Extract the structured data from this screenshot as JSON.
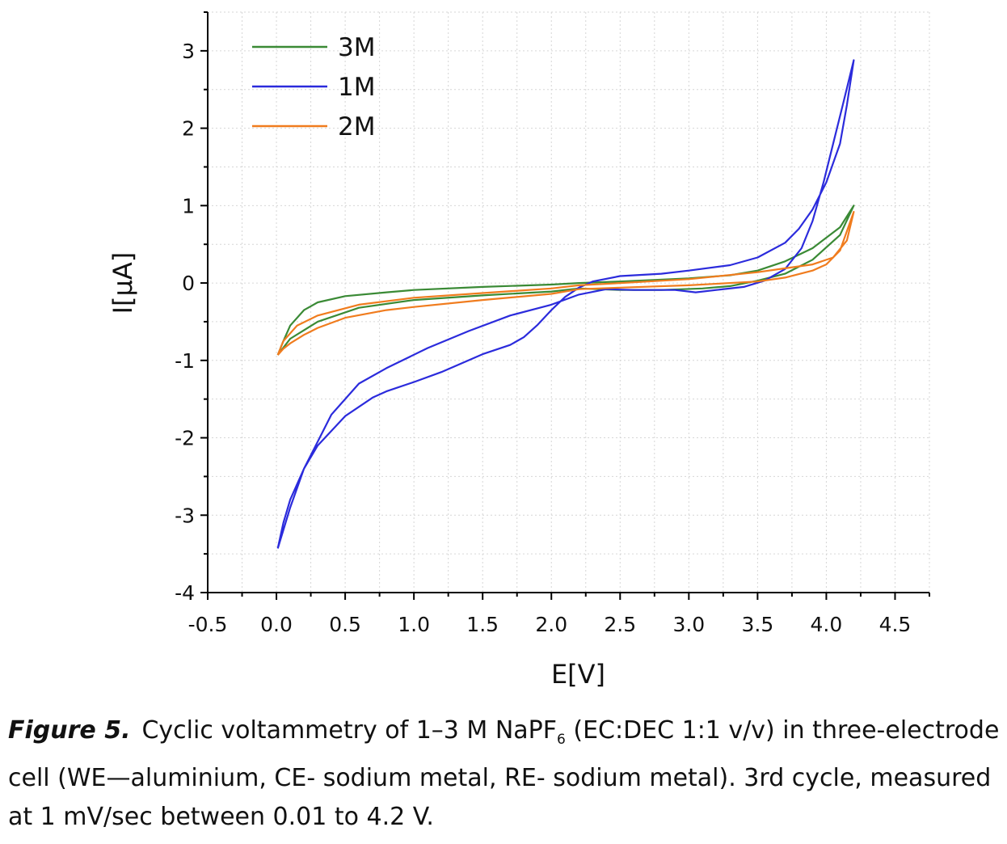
{
  "caption": {
    "label": "Figure 5.",
    "text_before_sub": "Cyclic voltammetry of 1–3 M NaPF",
    "subscript": "6",
    "text_after_sub": " (EC:DEC 1:1 v/v) in three-electrode cell (WE—aluminium, CE- sodium metal, RE- sodium metal). 3rd cycle, measured at 1 mV/sec between 0.01 to 4.2 V."
  },
  "chart_data": {
    "type": "line",
    "xlabel": "E[V]",
    "ylabel": "I[μA]",
    "xlim": [
      -0.5,
      4.75
    ],
    "ylim": [
      -4,
      3.5
    ],
    "xticks": [
      "-0.5",
      "0.0",
      "0.5",
      "1.0",
      "1.5",
      "2.0",
      "2.5",
      "3.0",
      "3.5",
      "4.0",
      "4.5"
    ],
    "yticks": [
      "-4",
      "-3",
      "-2",
      "-1",
      "0",
      "1",
      "2",
      "3"
    ],
    "grid": true,
    "legend_position": "top-left",
    "series": [
      {
        "name": "3M",
        "color": "#3a8a35",
        "points": [
          [
            0.01,
            -0.93
          ],
          [
            0.05,
            -0.75
          ],
          [
            0.1,
            -0.55
          ],
          [
            0.2,
            -0.35
          ],
          [
            0.3,
            -0.25
          ],
          [
            0.5,
            -0.17
          ],
          [
            0.8,
            -0.12
          ],
          [
            1.0,
            -0.09
          ],
          [
            1.5,
            -0.05
          ],
          [
            2.0,
            -0.02
          ],
          [
            2.2,
            0.0
          ],
          [
            2.5,
            0.02
          ],
          [
            3.0,
            0.06
          ],
          [
            3.3,
            0.1
          ],
          [
            3.5,
            0.16
          ],
          [
            3.7,
            0.28
          ],
          [
            3.9,
            0.45
          ],
          [
            4.1,
            0.72
          ],
          [
            4.2,
            1.0
          ],
          [
            4.1,
            0.62
          ],
          [
            3.9,
            0.3
          ],
          [
            3.7,
            0.12
          ],
          [
            3.5,
            0.03
          ],
          [
            3.3,
            -0.04
          ],
          [
            3.1,
            -0.07
          ],
          [
            2.8,
            -0.09
          ],
          [
            2.5,
            -0.09
          ],
          [
            2.2,
            -0.07
          ],
          [
            2.0,
            -0.11
          ],
          [
            1.5,
            -0.16
          ],
          [
            1.0,
            -0.22
          ],
          [
            0.6,
            -0.32
          ],
          [
            0.3,
            -0.5
          ],
          [
            0.1,
            -0.72
          ],
          [
            0.01,
            -0.93
          ]
        ]
      },
      {
        "name": "1M",
        "color": "#2b2bdc",
        "points": [
          [
            0.01,
            -3.43
          ],
          [
            0.05,
            -3.1
          ],
          [
            0.1,
            -2.8
          ],
          [
            0.2,
            -2.4
          ],
          [
            0.3,
            -2.1
          ],
          [
            0.5,
            -1.72
          ],
          [
            0.7,
            -1.48
          ],
          [
            0.8,
            -1.4
          ],
          [
            1.0,
            -1.28
          ],
          [
            1.2,
            -1.15
          ],
          [
            1.5,
            -0.92
          ],
          [
            1.7,
            -0.8
          ],
          [
            1.8,
            -0.7
          ],
          [
            1.9,
            -0.54
          ],
          [
            2.0,
            -0.35
          ],
          [
            2.1,
            -0.18
          ],
          [
            2.2,
            -0.06
          ],
          [
            2.3,
            0.02
          ],
          [
            2.5,
            0.09
          ],
          [
            2.8,
            0.12
          ],
          [
            3.0,
            0.16
          ],
          [
            3.3,
            0.23
          ],
          [
            3.5,
            0.33
          ],
          [
            3.7,
            0.52
          ],
          [
            3.8,
            0.7
          ],
          [
            3.9,
            0.95
          ],
          [
            4.0,
            1.3
          ],
          [
            4.1,
            1.8
          ],
          [
            4.15,
            2.3
          ],
          [
            4.2,
            2.88
          ],
          [
            4.12,
            2.3
          ],
          [
            4.05,
            1.8
          ],
          [
            3.98,
            1.3
          ],
          [
            3.9,
            0.8
          ],
          [
            3.82,
            0.45
          ],
          [
            3.7,
            0.18
          ],
          [
            3.55,
            0.03
          ],
          [
            3.4,
            -0.05
          ],
          [
            3.2,
            -0.09
          ],
          [
            3.05,
            -0.12
          ],
          [
            2.9,
            -0.09
          ],
          [
            2.6,
            -0.09
          ],
          [
            2.4,
            -0.08
          ],
          [
            2.2,
            -0.15
          ],
          [
            2.0,
            -0.28
          ],
          [
            1.7,
            -0.42
          ],
          [
            1.4,
            -0.62
          ],
          [
            1.1,
            -0.84
          ],
          [
            0.8,
            -1.1
          ],
          [
            0.6,
            -1.3
          ],
          [
            0.4,
            -1.7
          ],
          [
            0.2,
            -2.4
          ],
          [
            0.1,
            -2.9
          ],
          [
            0.01,
            -3.43
          ]
        ]
      },
      {
        "name": "2M",
        "color": "#f07c1e",
        "points": [
          [
            0.01,
            -0.93
          ],
          [
            0.05,
            -0.85
          ],
          [
            0.1,
            -0.78
          ],
          [
            0.2,
            -0.67
          ],
          [
            0.3,
            -0.58
          ],
          [
            0.5,
            -0.45
          ],
          [
            0.8,
            -0.35
          ],
          [
            1.0,
            -0.31
          ],
          [
            1.5,
            -0.22
          ],
          [
            2.0,
            -0.14
          ],
          [
            2.2,
            -0.08
          ],
          [
            2.5,
            -0.06
          ],
          [
            3.0,
            -0.03
          ],
          [
            3.5,
            0.02
          ],
          [
            3.7,
            0.07
          ],
          [
            3.9,
            0.16
          ],
          [
            4.0,
            0.24
          ],
          [
            4.1,
            0.42
          ],
          [
            4.2,
            0.92
          ],
          [
            4.15,
            0.55
          ],
          [
            4.05,
            0.33
          ],
          [
            3.9,
            0.24
          ],
          [
            3.7,
            0.19
          ],
          [
            3.5,
            0.14
          ],
          [
            3.0,
            0.05
          ],
          [
            2.5,
            0.0
          ],
          [
            2.2,
            -0.03
          ],
          [
            2.0,
            -0.07
          ],
          [
            1.5,
            -0.13
          ],
          [
            1.0,
            -0.19
          ],
          [
            0.6,
            -0.28
          ],
          [
            0.3,
            -0.42
          ],
          [
            0.15,
            -0.55
          ],
          [
            0.05,
            -0.75
          ],
          [
            0.01,
            -0.93
          ]
        ]
      }
    ]
  }
}
